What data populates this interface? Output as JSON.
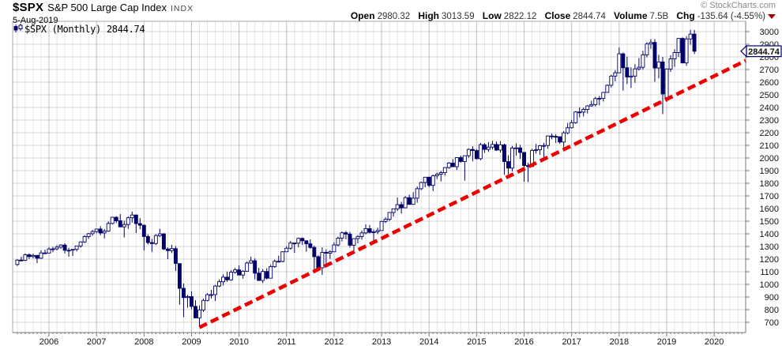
{
  "header": {
    "symbol": "$SPX",
    "name": "S&P 500 Large Cap Index",
    "exchange": "INDX",
    "date": "5-Aug-2019",
    "copyright": "© StockCharts.com",
    "quote": {
      "open_label": "Open",
      "open": "2980.32",
      "high_label": "High",
      "high": "3013.59",
      "low_label": "Low",
      "low": "2822.12",
      "close_label": "Close",
      "close": "2844.74",
      "volume_label": "Volume",
      "volume": "7.5B",
      "chg_label": "Chg",
      "chg": "-135.64 (-4.55%)",
      "direction_icon": "down-triangle"
    }
  },
  "legend": {
    "text": "$SPX (Monthly) 2844.74",
    "icon": "candlestick-icon"
  },
  "price_tag": {
    "value": "2844.74"
  },
  "colors": {
    "candle_outline": "#000066",
    "candle_up_fill": "#ffffff",
    "candle_down_fill": "#000066",
    "trendline": "#ec0000",
    "grid_minor_v": "#e3e3e3",
    "grid_year_v": "#c0c0c0",
    "grid_h": "#d6d6d6",
    "frame": "#aaaaaa",
    "axis_line": "#777777",
    "chg_arrow": "#990000",
    "copyright_text": "#898989"
  },
  "chart_data": {
    "type": "candlestick",
    "title": "$SPX (Monthly)",
    "xlabel": "",
    "ylabel": "",
    "grid": "on",
    "start_month": "2005-05",
    "end_month": "2019-08",
    "x_axis_years": [
      2006,
      2007,
      2008,
      2009,
      2010,
      2011,
      2012,
      2013,
      2014,
      2015,
      2016,
      2017,
      2018,
      2019,
      2020
    ],
    "y_ticks": {
      "start": 700,
      "end": 3000,
      "step": 100
    },
    "ylim": [
      619,
      3081
    ],
    "last_price": 2844.74,
    "trendline": {
      "style": "dashed",
      "color": "#ec0000",
      "from": {
        "month": "2009-03",
        "price": 660
      },
      "to": {
        "at": "right_edge",
        "price": 2770
      }
    },
    "ohlc": [
      [
        1157,
        1199,
        1146,
        1192
      ],
      [
        1192,
        1219,
        1188,
        1191
      ],
      [
        1191,
        1245,
        1184,
        1234
      ],
      [
        1234,
        1246,
        1201,
        1220
      ],
      [
        1220,
        1243,
        1205,
        1229
      ],
      [
        1229,
        1233,
        1168,
        1207
      ],
      [
        1207,
        1270,
        1201,
        1249
      ],
      [
        1249,
        1275,
        1246,
        1248
      ],
      [
        1248,
        1294,
        1245,
        1280
      ],
      [
        1280,
        1297,
        1254,
        1281
      ],
      [
        1281,
        1310,
        1268,
        1295
      ],
      [
        1295,
        1318,
        1280,
        1311
      ],
      [
        1311,
        1326,
        1245,
        1270
      ],
      [
        1270,
        1290,
        1219,
        1270
      ],
      [
        1270,
        1280,
        1225,
        1277
      ],
      [
        1277,
        1306,
        1261,
        1304
      ],
      [
        1304,
        1340,
        1290,
        1336
      ],
      [
        1336,
        1389,
        1327,
        1378
      ],
      [
        1378,
        1407,
        1360,
        1401
      ],
      [
        1401,
        1432,
        1385,
        1418
      ],
      [
        1418,
        1441,
        1404,
        1438
      ],
      [
        1438,
        1461,
        1389,
        1407
      ],
      [
        1407,
        1438,
        1364,
        1421
      ],
      [
        1421,
        1498,
        1416,
        1482
      ],
      [
        1482,
        1535,
        1476,
        1531
      ],
      [
        1531,
        1540,
        1484,
        1503
      ],
      [
        1503,
        1556,
        1455,
        1455
      ],
      [
        1455,
        1504,
        1371,
        1474
      ],
      [
        1474,
        1539,
        1439,
        1527
      ],
      [
        1527,
        1576,
        1489,
        1549
      ],
      [
        1549,
        1552,
        1406,
        1481
      ],
      [
        1481,
        1524,
        1436,
        1468
      ],
      [
        1468,
        1472,
        1270,
        1379
      ],
      [
        1379,
        1396,
        1316,
        1331
      ],
      [
        1331,
        1360,
        1257,
        1323
      ],
      [
        1323,
        1398,
        1312,
        1386
      ],
      [
        1386,
        1440,
        1374,
        1400
      ],
      [
        1400,
        1404,
        1272,
        1280
      ],
      [
        1280,
        1292,
        1200,
        1267
      ],
      [
        1267,
        1313,
        1247,
        1283
      ],
      [
        1283,
        1303,
        1106,
        1166
      ],
      [
        1164,
        1167,
        839,
        969
      ],
      [
        969,
        1007,
        741,
        896
      ],
      [
        896,
        918,
        815,
        903
      ],
      [
        903,
        944,
        804,
        826
      ],
      [
        826,
        875,
        735,
        735
      ],
      [
        735,
        833,
        666,
        798
      ],
      [
        798,
        888,
        783,
        873
      ],
      [
        873,
        930,
        866,
        919
      ],
      [
        919,
        956,
        888,
        919
      ],
      [
        919,
        996,
        869,
        987
      ],
      [
        987,
        1039,
        978,
        1021
      ],
      [
        1021,
        1080,
        992,
        1057
      ],
      [
        1057,
        1101,
        1020,
        1036
      ],
      [
        1036,
        1113,
        1029,
        1096
      ],
      [
        1096,
        1130,
        1085,
        1115
      ],
      [
        1115,
        1150,
        1071,
        1074
      ],
      [
        1074,
        1112,
        1045,
        1104
      ],
      [
        1104,
        1181,
        1101,
        1169
      ],
      [
        1169,
        1220,
        1162,
        1187
      ],
      [
        1187,
        1205,
        1040,
        1089
      ],
      [
        1089,
        1131,
        1028,
        1031
      ],
      [
        1031,
        1121,
        1010,
        1102
      ],
      [
        1102,
        1129,
        1039,
        1049
      ],
      [
        1049,
        1157,
        1049,
        1141
      ],
      [
        1141,
        1196,
        1131,
        1183
      ],
      [
        1183,
        1227,
        1173,
        1181
      ],
      [
        1181,
        1262,
        1175,
        1258
      ],
      [
        1258,
        1302,
        1257,
        1286
      ],
      [
        1286,
        1344,
        1274,
        1327
      ],
      [
        1327,
        1332,
        1249,
        1326
      ],
      [
        1326,
        1370,
        1294,
        1364
      ],
      [
        1364,
        1371,
        1311,
        1345
      ],
      [
        1345,
        1346,
        1258,
        1321
      ],
      [
        1321,
        1356,
        1282,
        1292
      ],
      [
        1292,
        1307,
        1101,
        1219
      ],
      [
        1219,
        1230,
        1114,
        1131
      ],
      [
        1131,
        1293,
        1075,
        1253
      ],
      [
        1253,
        1278,
        1158,
        1247
      ],
      [
        1247,
        1270,
        1202,
        1258
      ],
      [
        1258,
        1333,
        1258,
        1312
      ],
      [
        1312,
        1378,
        1300,
        1366
      ],
      [
        1366,
        1419,
        1340,
        1408
      ],
      [
        1408,
        1422,
        1357,
        1398
      ],
      [
        1398,
        1415,
        1292,
        1310
      ],
      [
        1310,
        1363,
        1267,
        1362
      ],
      [
        1362,
        1391,
        1325,
        1379
      ],
      [
        1379,
        1426,
        1354,
        1407
      ],
      [
        1407,
        1475,
        1396,
        1441
      ],
      [
        1441,
        1471,
        1403,
        1412
      ],
      [
        1412,
        1434,
        1343,
        1416
      ],
      [
        1416,
        1448,
        1398,
        1426
      ],
      [
        1426,
        1503,
        1426,
        1498
      ],
      [
        1498,
        1530,
        1485,
        1515
      ],
      [
        1515,
        1570,
        1501,
        1569
      ],
      [
        1569,
        1598,
        1536,
        1598
      ],
      [
        1598,
        1687,
        1581,
        1631
      ],
      [
        1631,
        1654,
        1560,
        1606
      ],
      [
        1606,
        1699,
        1604,
        1686
      ],
      [
        1686,
        1710,
        1628,
        1633
      ],
      [
        1633,
        1730,
        1633,
        1682
      ],
      [
        1682,
        1775,
        1646,
        1757
      ],
      [
        1757,
        1813,
        1746,
        1806
      ],
      [
        1806,
        1849,
        1768,
        1848
      ],
      [
        1848,
        1851,
        1770,
        1783
      ],
      [
        1783,
        1868,
        1738,
        1859
      ],
      [
        1859,
        1884,
        1834,
        1872
      ],
      [
        1872,
        1897,
        1814,
        1884
      ],
      [
        1884,
        1924,
        1860,
        1924
      ],
      [
        1924,
        1968,
        1915,
        1960
      ],
      [
        1960,
        1991,
        1930,
        1931
      ],
      [
        1931,
        2005,
        1905,
        2003
      ],
      [
        2003,
        2019,
        1964,
        1972
      ],
      [
        1972,
        2018,
        1821,
        2018
      ],
      [
        2018,
        2076,
        2002,
        2068
      ],
      [
        2068,
        2093,
        1973,
        2059
      ],
      [
        2059,
        2072,
        1988,
        1995
      ],
      [
        1995,
        2120,
        1981,
        2105
      ],
      [
        2105,
        2117,
        2040,
        2068
      ],
      [
        2068,
        2126,
        2048,
        2086
      ],
      [
        2086,
        2135,
        2068,
        2107
      ],
      [
        2107,
        2130,
        2056,
        2063
      ],
      [
        2063,
        2133,
        2044,
        2104
      ],
      [
        2104,
        2113,
        1867,
        1972
      ],
      [
        1972,
        2021,
        1872,
        1920
      ],
      [
        1920,
        2095,
        1894,
        2079
      ],
      [
        2079,
        2116,
        2019,
        2080
      ],
      [
        2080,
        2104,
        1993,
        2044
      ],
      [
        2044,
        2044,
        1812,
        1940
      ],
      [
        1940,
        1963,
        1810,
        1932
      ],
      [
        1932,
        2072,
        1932,
        2060
      ],
      [
        2060,
        2111,
        2034,
        2065
      ],
      [
        2065,
        2103,
        2025,
        2097
      ],
      [
        2097,
        2120,
        1992,
        2099
      ],
      [
        2099,
        2177,
        2074,
        2174
      ],
      [
        2174,
        2194,
        2147,
        2171
      ],
      [
        2171,
        2188,
        2119,
        2168
      ],
      [
        2168,
        2170,
        2114,
        2126
      ],
      [
        2126,
        2214,
        2084,
        2199
      ],
      [
        2199,
        2278,
        2187,
        2239
      ],
      [
        2239,
        2301,
        2234,
        2279
      ],
      [
        2279,
        2371,
        2271,
        2364
      ],
      [
        2364,
        2401,
        2322,
        2363
      ],
      [
        2363,
        2399,
        2329,
        2384
      ],
      [
        2384,
        2418,
        2353,
        2412
      ],
      [
        2412,
        2454,
        2406,
        2423
      ],
      [
        2423,
        2484,
        2408,
        2470
      ],
      [
        2470,
        2491,
        2417,
        2472
      ],
      [
        2472,
        2519,
        2447,
        2519
      ],
      [
        2519,
        2583,
        2518,
        2575
      ],
      [
        2575,
        2658,
        2557,
        2648
      ],
      [
        2648,
        2695,
        2606,
        2674
      ],
      [
        2674,
        2873,
        2674,
        2824
      ],
      [
        2824,
        2835,
        2533,
        2714
      ],
      [
        2714,
        2802,
        2586,
        2641
      ],
      [
        2641,
        2717,
        2554,
        2648
      ],
      [
        2648,
        2742,
        2595,
        2705
      ],
      [
        2705,
        2791,
        2692,
        2718
      ],
      [
        2718,
        2848,
        2699,
        2816
      ],
      [
        2816,
        2916,
        2796,
        2902
      ],
      [
        2902,
        2941,
        2864,
        2914
      ],
      [
        2914,
        2940,
        2603,
        2712
      ],
      [
        2712,
        2815,
        2631,
        2760
      ],
      [
        2760,
        2800,
        2347,
        2507
      ],
      [
        2477,
        2709,
        2444,
        2704
      ],
      [
        2704,
        2813,
        2682,
        2784
      ],
      [
        2784,
        2860,
        2722,
        2834
      ],
      [
        2834,
        2949,
        2799,
        2946
      ],
      [
        2946,
        2954,
        2751,
        2752
      ],
      [
        2752,
        2964,
        2729,
        2942
      ],
      [
        2942,
        3014,
        2896,
        2980
      ],
      [
        2980.32,
        3013.59,
        2822.12,
        2844.74
      ]
    ]
  }
}
